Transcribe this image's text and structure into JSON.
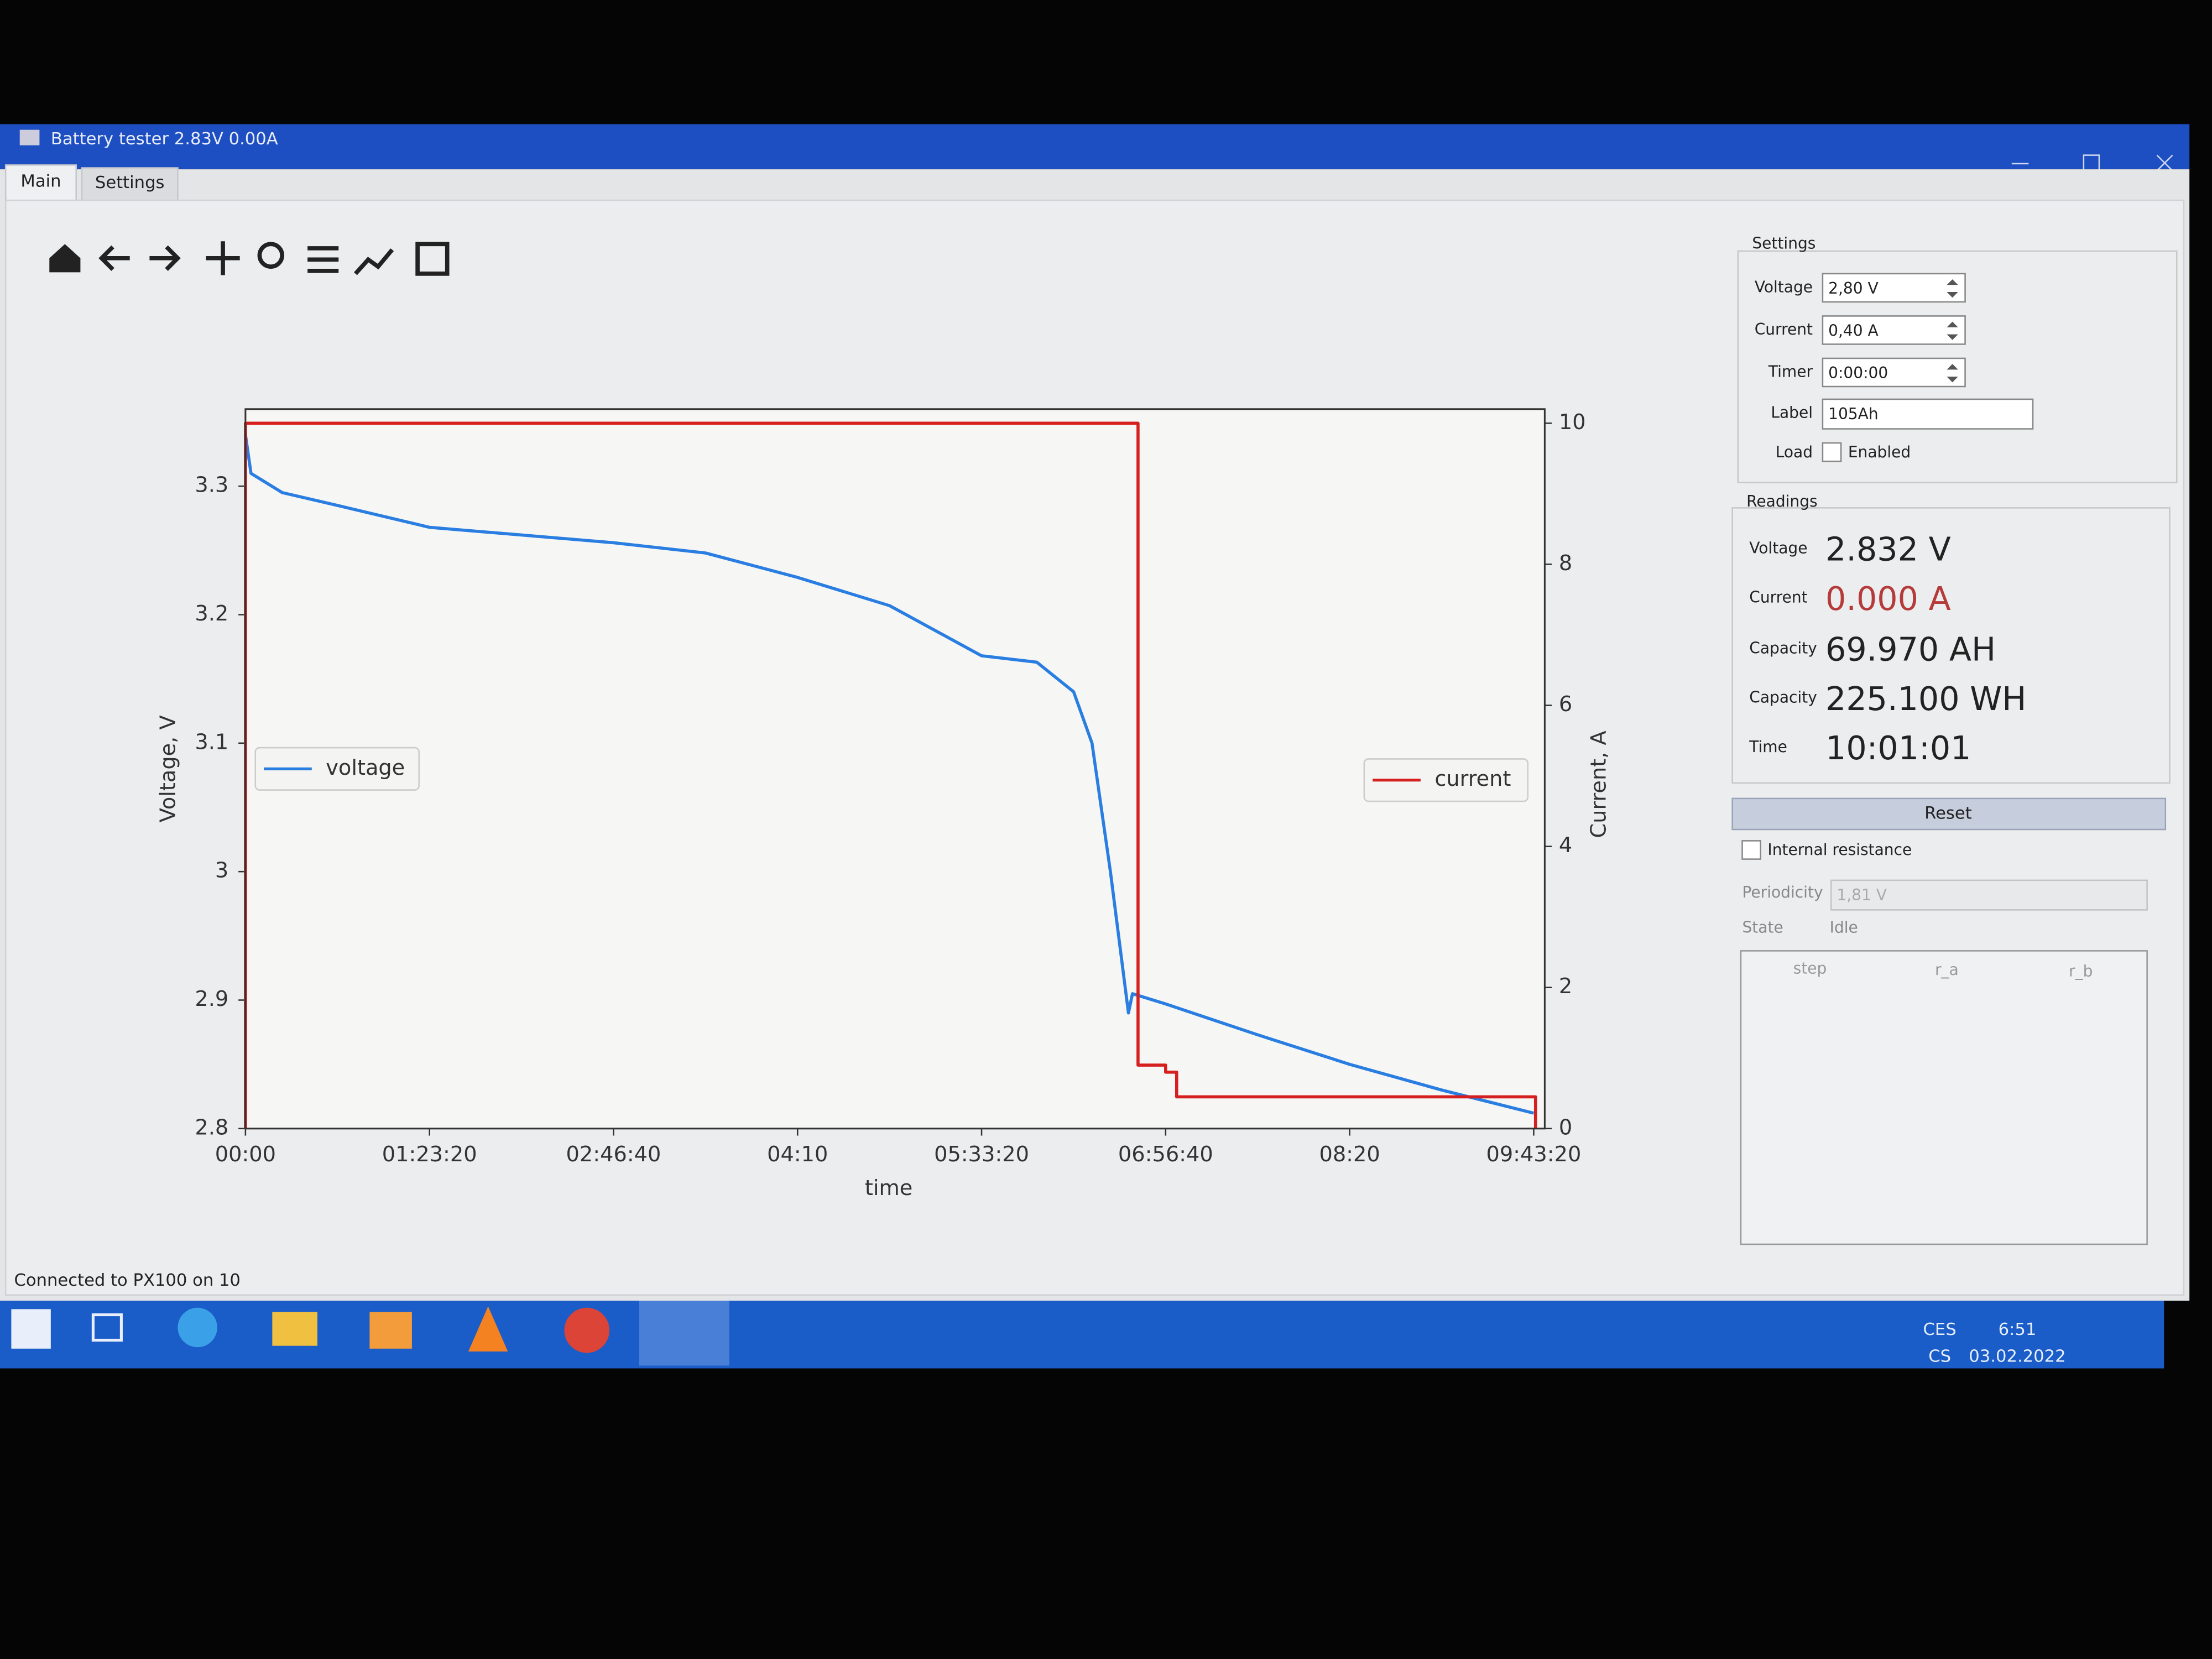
{
  "window": {
    "title": "Battery tester 2.83V 0.00A"
  },
  "tabs": [
    "Main",
    "Settings"
  ],
  "chart_data": {
    "type": "line",
    "xlabel": "time",
    "ylabel": "Voltage, V",
    "y2label": "Current, A",
    "xlim": [
      0,
      35300
    ],
    "xticks": [
      {
        "value": 0,
        "label": "00:00"
      },
      {
        "value": 5000,
        "label": "01:23:20"
      },
      {
        "value": 10000,
        "label": "02:46:40"
      },
      {
        "value": 15000,
        "label": "04:10"
      },
      {
        "value": 20000,
        "label": "05:33:20"
      },
      {
        "value": 25000,
        "label": "06:56:40"
      },
      {
        "value": 30000,
        "label": "08:20"
      },
      {
        "value": 35000,
        "label": "09:43:20"
      }
    ],
    "ylim": [
      2.8,
      3.36
    ],
    "yticks": [
      2.8,
      2.9,
      3.0,
      3.1,
      3.2,
      3.3
    ],
    "y2lim": [
      0,
      10.2
    ],
    "y2ticks": [
      0,
      2,
      4,
      6,
      8,
      10
    ],
    "series": [
      {
        "name": "voltage",
        "color": "#2a7de1",
        "legend_loc": "center left",
        "x": [
          0,
          150,
          1000,
          2500,
          5000,
          7500,
          10000,
          12500,
          15000,
          17500,
          20000,
          21500,
          22500,
          23000,
          23500,
          23990,
          24100,
          25000,
          27500,
          30000,
          32500,
          35000
        ],
        "values": [
          3.34,
          3.31,
          3.295,
          3.285,
          3.268,
          3.262,
          3.256,
          3.248,
          3.229,
          3.207,
          3.168,
          3.163,
          3.14,
          3.1,
          3.0,
          2.89,
          2.905,
          2.897,
          2.873,
          2.85,
          2.83,
          2.812
        ]
      },
      {
        "name": "current",
        "color": "#d62020",
        "axis": "y2",
        "legend_loc": "center right",
        "x": [
          0,
          0,
          24250,
          24250,
          25000,
          25000,
          25300,
          25300,
          35050,
          35050
        ],
        "values": [
          0,
          10,
          10,
          0.9,
          0.9,
          0.8,
          0.8,
          0.45,
          0.45,
          0
        ]
      }
    ]
  },
  "settings": {
    "title": "Settings",
    "fields": [
      {
        "label": "Voltage",
        "value": "2,80 V"
      },
      {
        "label": "Current",
        "value": "0,40 A"
      },
      {
        "label": "Timer",
        "value": "0:00:00"
      },
      {
        "label": "Label",
        "value": "105Ah"
      },
      {
        "label": "Load",
        "value": "Enabled"
      }
    ]
  },
  "readings": {
    "title": "Readings",
    "rows": [
      {
        "label": "Voltage",
        "value": "2.832 V"
      },
      {
        "label": "Current",
        "value": "0.000 A"
      },
      {
        "label": "Capacity",
        "value": "69.970 AH"
      },
      {
        "label": "Capacity",
        "value": "225.100 WH"
      },
      {
        "label": "Time",
        "value": "10:01:01"
      }
    ]
  },
  "reset": "Reset",
  "internal_resistance": {
    "label": "Internal resistance",
    "periodicity_label": "Periodicity",
    "periodicity": "1,81 V",
    "state_label": "State",
    "state": "Idle",
    "columns": [
      "step",
      "r_a",
      "r_b"
    ]
  },
  "status": "Connected to PX100 on 10",
  "taskbar": {
    "language": [
      "CES",
      "CS"
    ],
    "time": "6:51",
    "date": "03.02.2022"
  }
}
